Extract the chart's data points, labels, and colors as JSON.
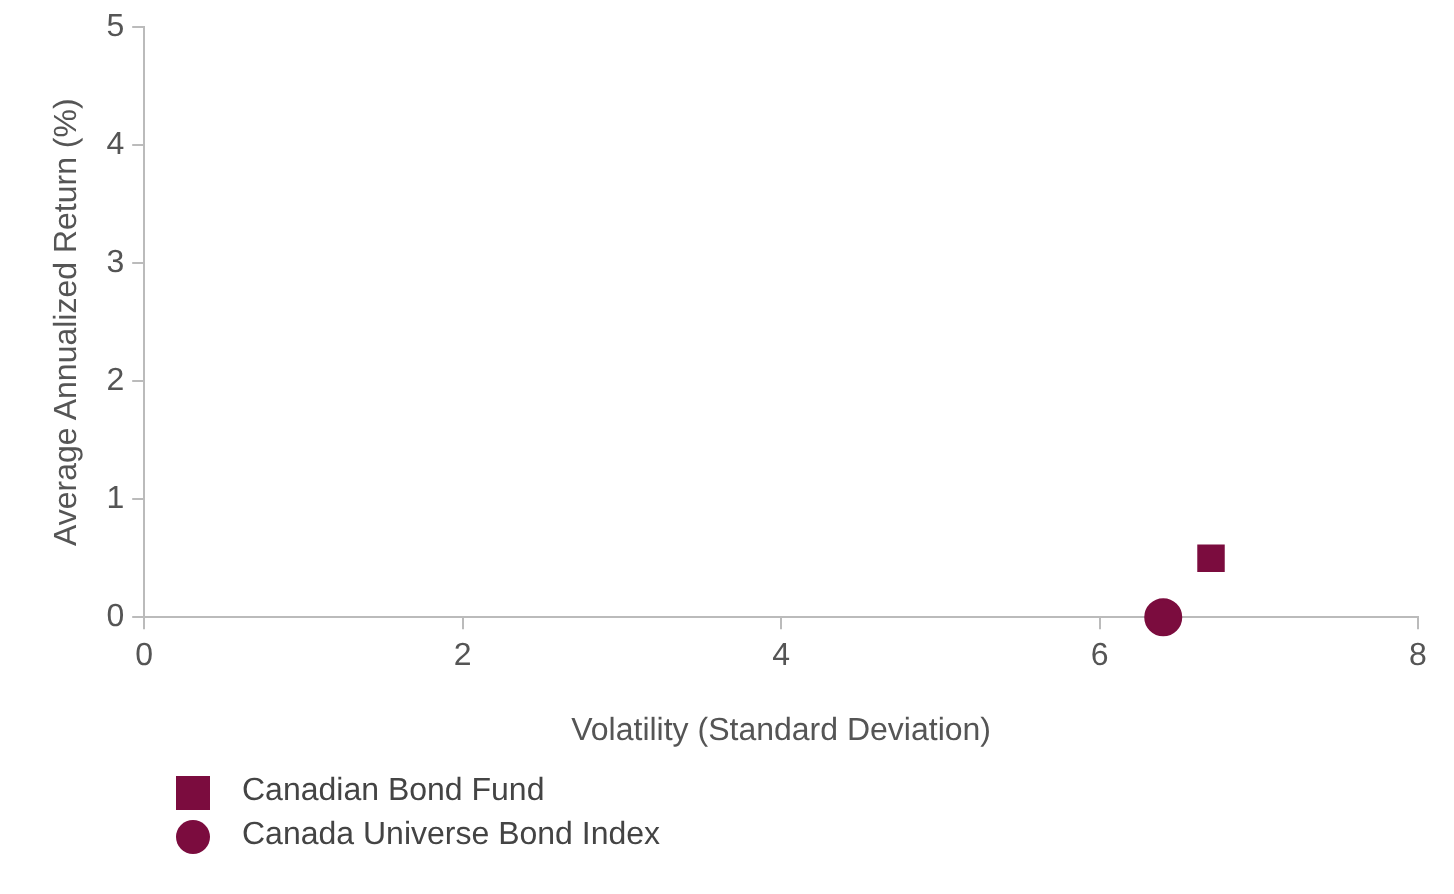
{
  "chart_data": {
    "type": "scatter",
    "xlabel": "Volatility (Standard Deviation)",
    "ylabel": "Average Annualized Return (%)",
    "xlim": [
      0,
      8
    ],
    "xticks": [
      0,
      2,
      4,
      6,
      8
    ],
    "ylim": [
      0,
      5
    ],
    "yticks": [
      0,
      1,
      2,
      3,
      4,
      5
    ],
    "grid": false,
    "legend": "bottom left",
    "series": [
      {
        "name": "Canadian Bond Fund",
        "color": "#7b0c3e",
        "marker": "square",
        "x": [
          6.7
        ],
        "values": [
          0.5
        ]
      },
      {
        "name": "Canada Universe Bond Index",
        "color": "#7b0c3e",
        "marker": "circle",
        "x": [
          6.4
        ],
        "values": [
          0
        ]
      }
    ]
  }
}
